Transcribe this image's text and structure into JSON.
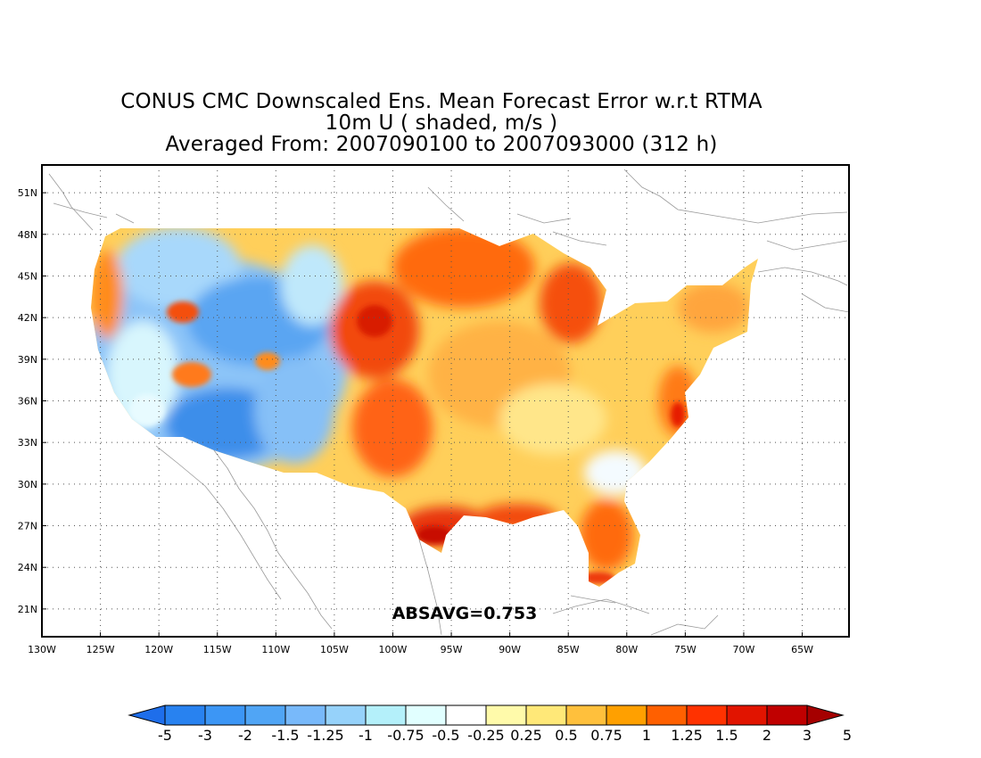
{
  "title_lines": [
    "CONUS CMC Downscaled Ens. Mean Forecast Error w.r.t RTMA",
    "10m U ( shaded, m/s )",
    "Averaged From: 2007090100 to 2007093000 (312 h)"
  ],
  "map": {
    "lon_range": [
      -130,
      -61
    ],
    "lat_range": [
      19,
      53
    ],
    "lon_ticks": [
      "130W",
      "125W",
      "120W",
      "115W",
      "110W",
      "105W",
      "100W",
      "95W",
      "90W",
      "85W",
      "80W",
      "75W",
      "70W",
      "65W"
    ],
    "lat_ticks": [
      "21N",
      "24N",
      "27N",
      "30N",
      "33N",
      "36N",
      "39N",
      "42N",
      "45N",
      "48N",
      "51N"
    ],
    "grid": "dotted"
  },
  "stat_label": "ABSAVG=0.753",
  "colorbar": {
    "labels": [
      "-5",
      "-3",
      "-2",
      "-1.5",
      "-1.25",
      "-1",
      "-0.75",
      "-0.5",
      "-0.25",
      "0.25",
      "0.5",
      "0.75",
      "1",
      "1.25",
      "1.5",
      "2",
      "3",
      "5"
    ],
    "colors": [
      "#1e6eeb",
      "#2882f0",
      "#3c96f5",
      "#50a5f5",
      "#78b9fa",
      "#96d2fa",
      "#b4f0fa",
      "#e1ffff",
      "#ffffff",
      "#fffaaa",
      "#ffe878",
      "#ffc03c",
      "#ffa000",
      "#ff6000",
      "#ff3200",
      "#e11400",
      "#c00000",
      "#a50000"
    ]
  }
}
